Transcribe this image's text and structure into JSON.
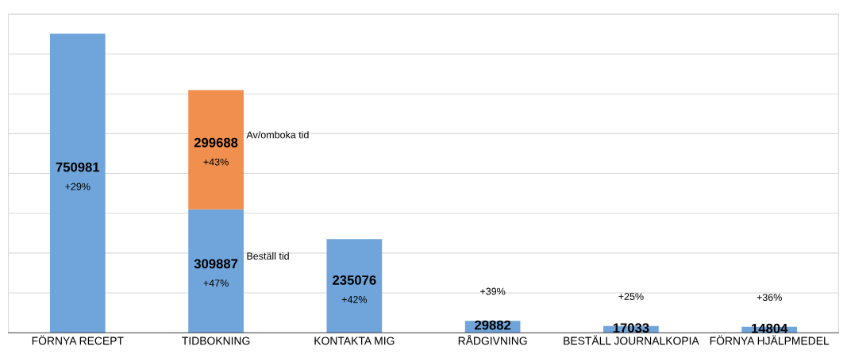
{
  "chart_data": {
    "type": "bar",
    "stacked": true,
    "categories": [
      "FÖRNYA RECEPT",
      "TIDBOKNING",
      "KONTAKTA MIG",
      "RÅDGIVNING",
      "BESTÄLL JOURNALKOPIA",
      "FÖRNYA HJÄLPMEDEL"
    ],
    "series": [
      {
        "name": "Beställ tid",
        "color": "#6fa5db",
        "values": [
          750981,
          309887,
          235076,
          29882,
          17033,
          14804
        ]
      },
      {
        "name": "Av/omboka tid",
        "color": "#f08f4e",
        "values": [
          null,
          299688,
          null,
          null,
          null,
          null
        ]
      }
    ],
    "data_labels": true,
    "ylim": [
      0,
      800000
    ],
    "yticks": [
      {
        "value": 0,
        "label": null
      },
      {
        "value": 100000,
        "label": null
      },
      {
        "value": 200000,
        "label": null
      },
      {
        "value": 300000,
        "label": null
      },
      {
        "value": 400000,
        "label": null
      },
      {
        "value": 500000,
        "label": null
      },
      {
        "value": 600000,
        "label": null
      },
      {
        "value": 700000,
        "label": null
      },
      {
        "value": 800000,
        "label": null
      }
    ],
    "tick_labels": "x",
    "grid": "y",
    "legend": false,
    "annotations": [
      "+29%",
      "+43%",
      "+47%",
      "+42%",
      "+39%",
      "+25%",
      "+36%"
    ]
  }
}
